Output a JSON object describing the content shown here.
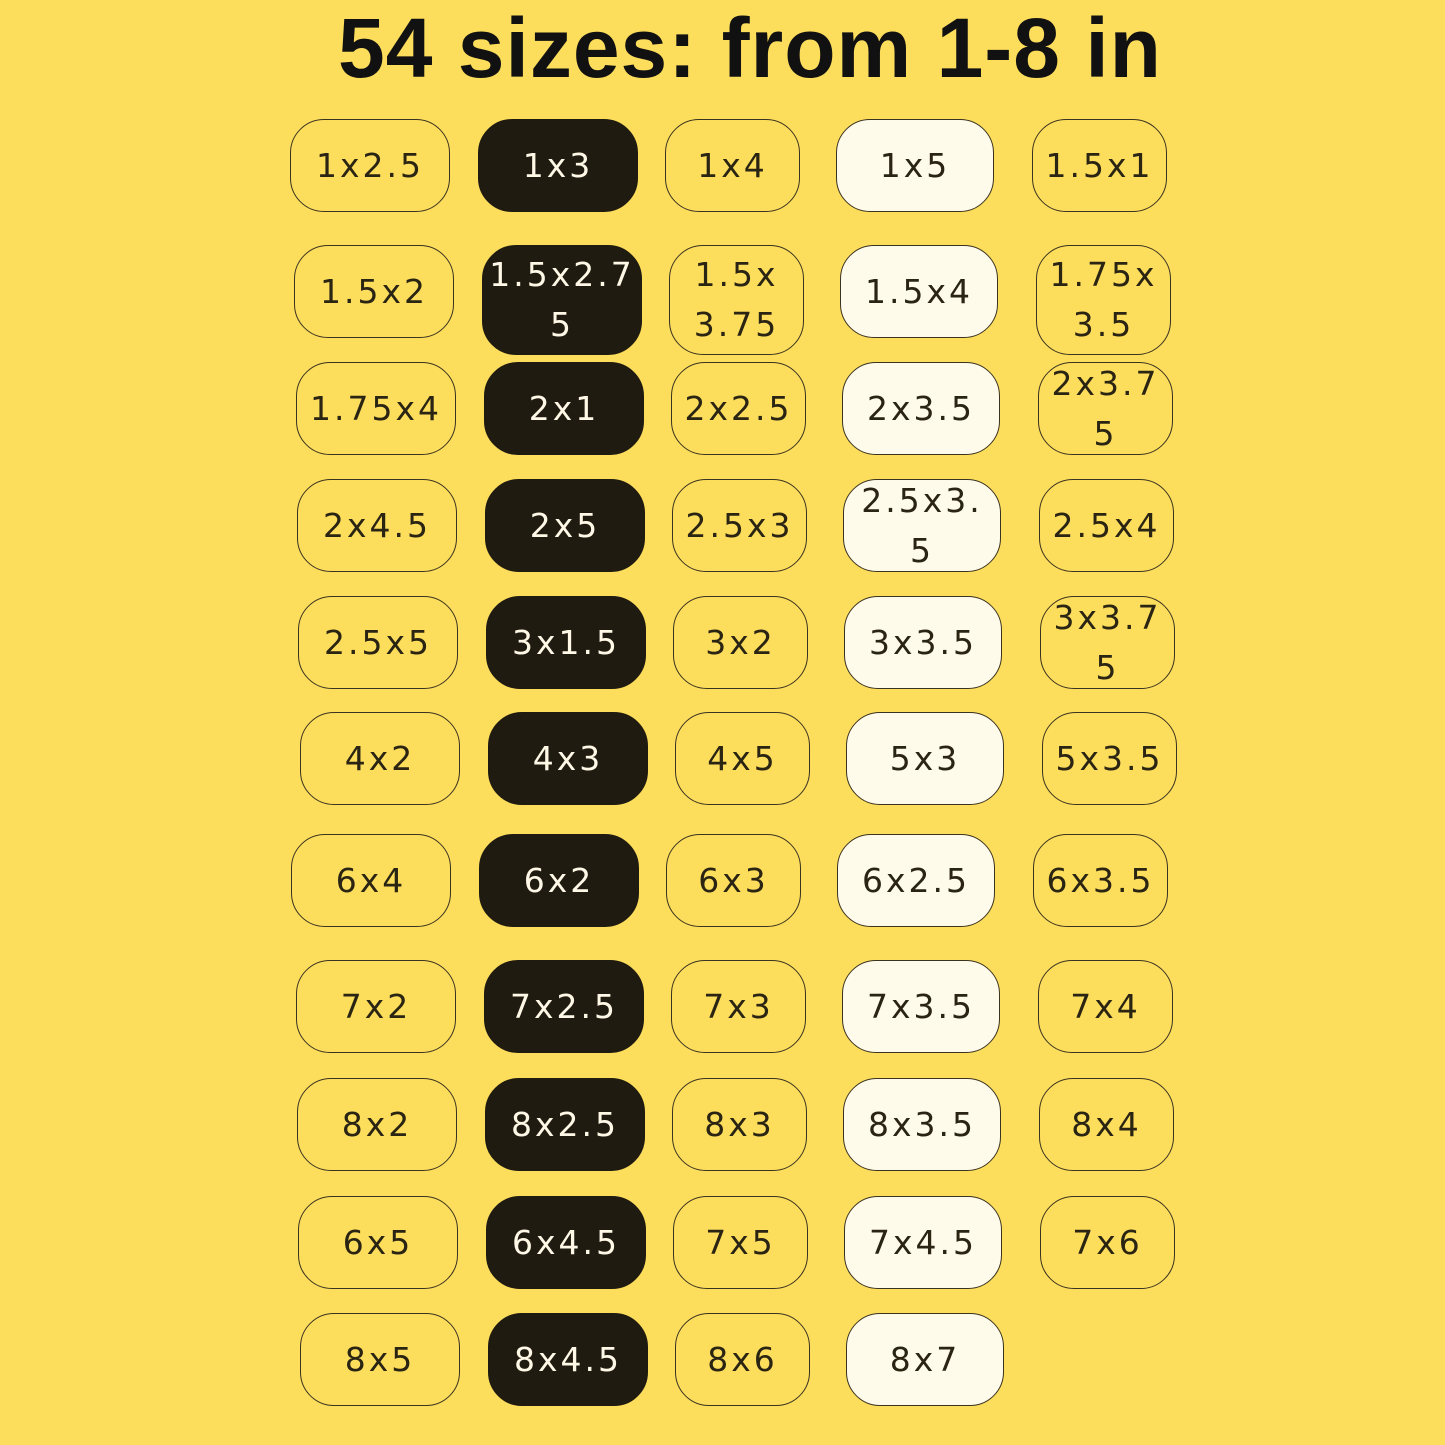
{
  "title": "54 sizes: from 1-8 in",
  "colors": {
    "background": "#FDDD5C",
    "dark": "#1F1B10",
    "cream": "#FFFBEA",
    "text": "#111111"
  },
  "column_variants": [
    "outline",
    "dark",
    "outline",
    "cream",
    "outline"
  ],
  "rows": [
    [
      "1x2.5",
      "1x3",
      "1x4",
      "1x5",
      "1.5x1"
    ],
    [
      "1.5x2",
      "1.5x2.75",
      "1.5x3.75",
      "1.5x4",
      "1.75x3.5"
    ],
    [
      "1.75x4",
      "2x1",
      "2x2.5",
      "2x3.5",
      "2x3.75"
    ],
    [
      "2x4.5",
      "2x5",
      "2.5x3",
      "2.5x3.5",
      "2.5x4"
    ],
    [
      "2.5x5",
      "3x1.5",
      "3x2",
      "3x3.5",
      "3x3.75"
    ],
    [
      "4x2",
      "4x3",
      "4x5",
      "5x3",
      "5x3.5"
    ],
    [
      "6x4",
      "6x2",
      "6x3",
      "6x2.5",
      "6x3.5"
    ],
    [
      "7x2",
      "7x2.5",
      "7x3",
      "7x3.5",
      "7x4"
    ],
    [
      "8x2",
      "8x2.5",
      "8x3",
      "8x3.5",
      "8x4"
    ],
    [
      "6x5",
      "6x4.5",
      "7x5",
      "7x4.5",
      "7x6"
    ],
    [
      "8x5",
      "8x4.5",
      "8x6",
      "8x7"
    ]
  ]
}
